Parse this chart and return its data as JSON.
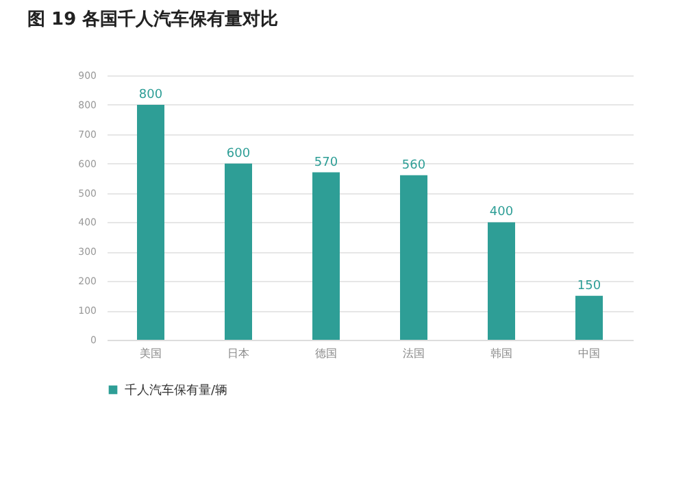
{
  "chart_data": {
    "type": "bar",
    "title": "图 19  各国千人汽车保有量对比",
    "categories": [
      "美国",
      "日本",
      "德国",
      "法国",
      "韩国",
      "中国"
    ],
    "series": [
      {
        "name": "千人汽车保有量/辆",
        "color": "#2e9e96",
        "values": [
          800,
          600,
          570,
          560,
          400,
          150
        ]
      }
    ],
    "ylim": [
      0,
      900
    ],
    "yticks": [
      0,
      100,
      200,
      300,
      400,
      500,
      600,
      700,
      800,
      900
    ],
    "grid": "y",
    "data_labels": true,
    "legend": "bottom"
  }
}
